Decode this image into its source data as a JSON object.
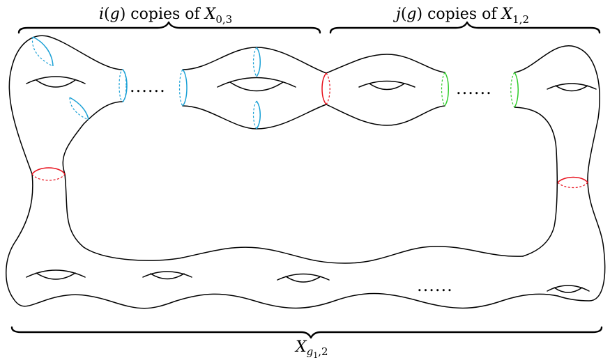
{
  "labels": {
    "top_left": {
      "pre": "i",
      "mid": "(",
      "var": "g",
      "post": ") copies of ",
      "sym": "X",
      "sub": "0,3"
    },
    "top_right": {
      "pre": "j",
      "mid": "(",
      "var": "g",
      "post": ") copies of ",
      "sym": "X",
      "sub": "1,2"
    },
    "bottom": {
      "sym": "X",
      "sub_main": "g",
      "sub_sub": "1",
      "sub_tail": ",2"
    }
  },
  "ellipsis": "......",
  "curve_colors": {
    "blue": "#1ba1d6",
    "red": "#e8101c",
    "green": "#2fcc2a"
  }
}
